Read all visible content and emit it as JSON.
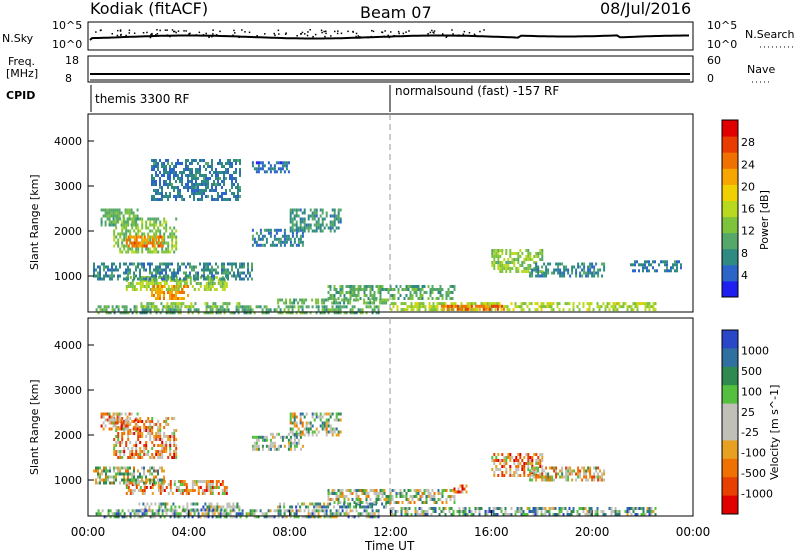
{
  "header": {
    "station": "Kodiak (fitACF)",
    "beam": "Beam 07",
    "date": "08/Jul/2016"
  },
  "noise_panel": {
    "left_label": "N.Sky",
    "right_label": "N.Search",
    "ticks_left": [
      "10^5",
      "10^0"
    ],
    "ticks_right": [
      "10^5",
      "10^0"
    ]
  },
  "freq_panel": {
    "left_label": "Freq.",
    "left_unit": "[MHz]",
    "ticks_left": [
      "18",
      "8"
    ],
    "right_label": "Nave",
    "ticks_right": [
      "60",
      "0"
    ]
  },
  "cpid": {
    "label": "CPID",
    "segments": [
      {
        "start_hour": 0,
        "text": "themis 3300 RF"
      },
      {
        "start_hour": 12,
        "text": "normalsound (fast) -157 RF"
      }
    ]
  },
  "x_axis": {
    "label": "Time UT",
    "ticks": [
      "00:00",
      "04:00",
      "08:00",
      "12:00",
      "16:00",
      "20:00",
      "00:00"
    ],
    "range_hours": [
      0,
      24
    ]
  },
  "chart_data": [
    {
      "type": "heatmap",
      "title": "",
      "xlabel": "Time UT",
      "ylabel": "Slant Range [km]",
      "yticks": [
        "1000",
        "2000",
        "3000",
        "4000"
      ],
      "ylim": [
        200,
        4600
      ],
      "colorbar": {
        "label": "Power [dB]",
        "ticks": [
          "4",
          "8",
          "12",
          "16",
          "20",
          "24",
          "28"
        ],
        "range": [
          0,
          30
        ],
        "colors": [
          "#1e1ef0",
          "#2c64c8",
          "#2f8a82",
          "#55a86a",
          "#7ec33c",
          "#b9d820",
          "#f0d000",
          "#f7a600",
          "#f07000",
          "#e83c00",
          "#e00000"
        ]
      },
      "regions": [
        {
          "t": [
            0.3,
            11.5
          ],
          "r": [
            200,
            350
          ],
          "v": 9
        },
        {
          "t": [
            2.0,
            6.0
          ],
          "r": [
            300,
            420
          ],
          "v": 12
        },
        {
          "t": [
            7.5,
            12.0
          ],
          "r": [
            370,
            500
          ],
          "v": 10
        },
        {
          "t": [
            12.0,
            22.5
          ],
          "r": [
            250,
            420
          ],
          "v": 14
        },
        {
          "t": [
            14.0,
            16.5
          ],
          "r": [
            260,
            360
          ],
          "v": 24
        },
        {
          "t": [
            9.5,
            14.5
          ],
          "r": [
            500,
            800
          ],
          "v": 9
        },
        {
          "t": [
            1.5,
            5.5
          ],
          "r": [
            700,
            1000
          ],
          "v": 13
        },
        {
          "t": [
            2.5,
            4.0
          ],
          "r": [
            500,
            800
          ],
          "v": 22
        },
        {
          "t": [
            0.2,
            6.5
          ],
          "r": [
            900,
            1300
          ],
          "v": 6
        },
        {
          "t": [
            1.0,
            3.5
          ],
          "r": [
            1500,
            2300
          ],
          "v": 12
        },
        {
          "t": [
            1.5,
            3.0
          ],
          "r": [
            1650,
            1900
          ],
          "v": 23
        },
        {
          "t": [
            0.5,
            2.0
          ],
          "r": [
            2100,
            2500
          ],
          "v": 10
        },
        {
          "t": [
            6.5,
            8.5
          ],
          "r": [
            1700,
            2050
          ],
          "v": 5
        },
        {
          "t": [
            8.0,
            10.0
          ],
          "r": [
            2000,
            2500
          ],
          "v": 7
        },
        {
          "t": [
            6.5,
            8.0
          ],
          "r": [
            3300,
            3550
          ],
          "v": 4
        },
        {
          "t": [
            16.0,
            18.0
          ],
          "r": [
            1100,
            1600
          ],
          "v": 12
        },
        {
          "t": [
            17.5,
            20.5
          ],
          "r": [
            1000,
            1300
          ],
          "v": 6
        },
        {
          "t": [
            21.5,
            23.5
          ],
          "r": [
            1100,
            1350
          ],
          "v": 5
        },
        {
          "t": [
            2.5,
            6.0
          ],
          "r": [
            2700,
            3600
          ],
          "v": 5
        }
      ]
    },
    {
      "type": "heatmap",
      "title": "",
      "xlabel": "Time UT",
      "ylabel": "Slant Range [km]",
      "yticks": [
        "1000",
        "2000",
        "3000",
        "4000"
      ],
      "ylim": [
        200,
        4600
      ],
      "colorbar": {
        "label": "Velocity [m s^-1]",
        "ticks": [
          "1000",
          "500",
          "100",
          "25",
          "-25",
          "-100",
          "-500",
          "-1000"
        ],
        "colors": [
          "#2848c8",
          "#3070a0",
          "#2f8a50",
          "#55c040",
          "#c0c0b8",
          "#c0c0b8",
          "#e8a020",
          "#f07000",
          "#e84000",
          "#e00000"
        ]
      },
      "regions": [
        {
          "t": [
            0.3,
            11.5
          ],
          "r": [
            200,
            350
          ],
          "v": 3
        },
        {
          "t": [
            2.0,
            6.0
          ],
          "r": [
            300,
            500
          ],
          "v": 3
        },
        {
          "t": [
            7.5,
            12.0
          ],
          "r": [
            370,
            500
          ],
          "v": 3
        },
        {
          "t": [
            12.0,
            22.5
          ],
          "r": [
            250,
            400
          ],
          "v": 3
        },
        {
          "t": [
            9.5,
            14.5
          ],
          "r": [
            500,
            800
          ],
          "v": 4
        },
        {
          "t": [
            1.5,
            5.5
          ],
          "r": [
            700,
            1000
          ],
          "v": 6
        },
        {
          "t": [
            0.2,
            3.0
          ],
          "r": [
            900,
            1300
          ],
          "v": 4
        },
        {
          "t": [
            1.0,
            3.5
          ],
          "r": [
            1500,
            2400
          ],
          "v": 6
        },
        {
          "t": [
            0.5,
            2.0
          ],
          "r": [
            2100,
            2500
          ],
          "v": 6
        },
        {
          "t": [
            6.5,
            8.5
          ],
          "r": [
            1700,
            2050
          ],
          "v": 4
        },
        {
          "t": [
            8.0,
            10.0
          ],
          "r": [
            2000,
            2500
          ],
          "v": 4
        },
        {
          "t": [
            16.0,
            18.0
          ],
          "r": [
            1100,
            1600
          ],
          "v": 6
        },
        {
          "t": [
            17.5,
            20.5
          ],
          "r": [
            1000,
            1300
          ],
          "v": 5
        },
        {
          "t": [
            14.5,
            15.0
          ],
          "r": [
            700,
            900
          ],
          "v": 7
        }
      ]
    }
  ]
}
